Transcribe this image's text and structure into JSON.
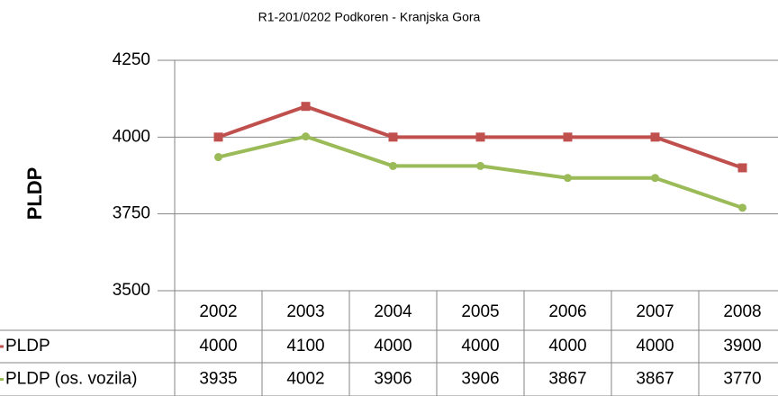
{
  "chart_data": {
    "type": "line",
    "title": "R1-201/0202 Podkoren - Kranjska Gora",
    "y_label": "PLDP",
    "categories": [
      "2002",
      "2003",
      "2004",
      "2005",
      "2006",
      "2007",
      "2008"
    ],
    "series": [
      {
        "name": "PLDP",
        "color": "#c0504d",
        "marker": "square",
        "values": [
          4000,
          4100,
          4000,
          4000,
          4000,
          4000,
          3900
        ]
      },
      {
        "name": "PLDP (os. vozila)",
        "color": "#9bbb59",
        "marker": "circle",
        "values": [
          3935,
          4002,
          3906,
          3906,
          3867,
          3867,
          3770
        ]
      }
    ],
    "ylim": [
      3500,
      4250
    ],
    "yticks": [
      3500,
      3750,
      4000,
      4250
    ],
    "grid": true,
    "data_table": true
  }
}
